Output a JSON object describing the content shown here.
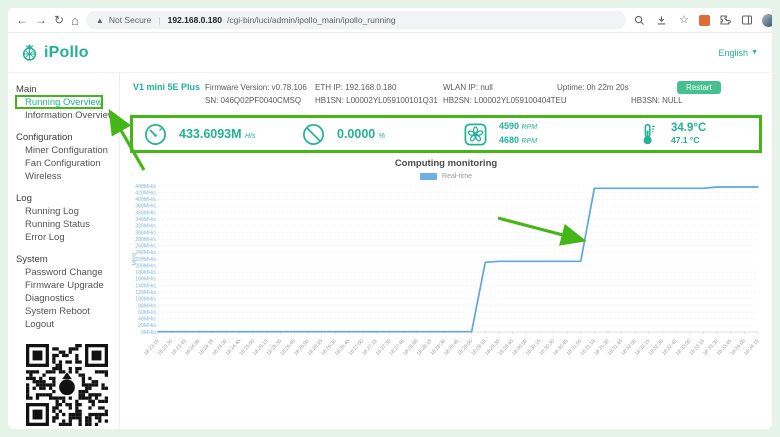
{
  "browser": {
    "security_label": "Not Secure",
    "url_host": "192.168.0.180",
    "url_path": "/cgi-bin/luci/admin/ipollo_main/ipollo_running"
  },
  "header": {
    "brand": "iPollo",
    "language": "English"
  },
  "sidebar": {
    "groups": [
      {
        "label": "Main",
        "items": [
          "Running Overview",
          "Information Overview"
        ]
      },
      {
        "label": "Configuration",
        "items": [
          "Miner Configuration",
          "Fan Configuration",
          "Wireless"
        ]
      },
      {
        "label": "Log",
        "items": [
          "Running Log",
          "Running Status",
          "Error Log"
        ]
      },
      {
        "label": "System",
        "items": [
          "Password Change",
          "Firmware Upgrade",
          "Diagnostics",
          "System Reboot",
          "Logout"
        ]
      }
    ],
    "active_item": "Running Overview"
  },
  "device_info": {
    "model": "V1 mini 5E Plus",
    "row1": [
      "Firmware Version: v0.78.106",
      "ETH IP: 192.168.0.180",
      "WLAN IP: null",
      "Uptime: 0h 22m 20s"
    ],
    "row2": [
      "SN: 046Q02PF0040CMSQ",
      "HB1SN: L00002YL059100101Q31",
      "HB2SN: L00002YL059100404TEU",
      "HB3SN: NULL"
    ],
    "restart_label": "Restart"
  },
  "stats": {
    "hashrate": {
      "value": "433.6093M",
      "unit": "H/s"
    },
    "reject_rate": {
      "value": "0.0000",
      "unit": "%"
    },
    "fan": [
      {
        "value": "4590",
        "unit": "RPM"
      },
      {
        "value": "4680",
        "unit": "RPM"
      }
    ],
    "temperature": [
      {
        "value": "34.9",
        "unit": "°C"
      },
      {
        "value": "47.1",
        "unit": "°C"
      }
    ]
  },
  "chart_data": {
    "type": "line",
    "title": "Computing monitoring",
    "legend": [
      {
        "name": "Real-time",
        "color": "#6cb1e1"
      }
    ],
    "legend_position": "top",
    "grid": true,
    "ylabel": "MH/S",
    "y_unit": "MH/s",
    "ylim": [
      0,
      440
    ],
    "y_step": 20,
    "y_ticks": [
      "0MH/s",
      "20MH/s",
      "40MH/s",
      "60MH/s",
      "80MH/s",
      "100MH/s",
      "120MH/s",
      "140MH/s",
      "160MH/s",
      "180MH/s",
      "200MH/s",
      "220MH/s",
      "240MH/s",
      "260MH/s",
      "280MH/s",
      "300MH/s",
      "320MH/s",
      "340MH/s",
      "360MH/s",
      "380MH/s",
      "400MH/s",
      "420MH/s",
      "440MH/s"
    ],
    "x": [
      "18:23:15",
      "18:23:30",
      "18:23:45",
      "18:24:00",
      "18:24:15",
      "18:24:30",
      "18:24:45",
      "18:25:00",
      "18:25:15",
      "18:25:30",
      "18:25:45",
      "18:26:00",
      "18:26:15",
      "18:26:30",
      "18:26:45",
      "18:27:00",
      "18:27:15",
      "18:27:30",
      "18:27:45",
      "18:28:00",
      "18:28:15",
      "18:28:30",
      "18:28:45",
      "18:29:00",
      "18:29:15",
      "18:29:30",
      "18:29:45",
      "18:30:00",
      "18:30:15",
      "18:30:30",
      "18:30:45",
      "18:31:00",
      "18:31:15",
      "18:31:30",
      "18:31:45",
      "18:32:00",
      "18:32:15",
      "18:32:30",
      "18:32:45",
      "18:33:00",
      "18:33:15",
      "18:33:30",
      "18:33:45",
      "18:34:00",
      "18:34:15"
    ],
    "series": [
      {
        "name": "Real-time",
        "color": "#5fa8dc",
        "values": [
          1,
          1,
          1,
          1,
          1,
          1,
          1,
          1,
          1,
          1,
          1,
          1,
          1,
          1,
          1,
          1,
          1,
          1,
          1,
          1,
          1,
          1,
          1,
          1,
          210,
          213,
          213,
          213,
          213,
          213,
          213,
          213,
          433,
          433,
          433,
          433,
          433,
          433,
          433,
          433,
          433,
          437,
          437,
          437,
          437
        ]
      }
    ]
  },
  "colors": {
    "brand_green": "#21b394",
    "annotation_green": "#45b618",
    "line_blue": "#5fa8dc",
    "button_green": "#47c08f"
  }
}
